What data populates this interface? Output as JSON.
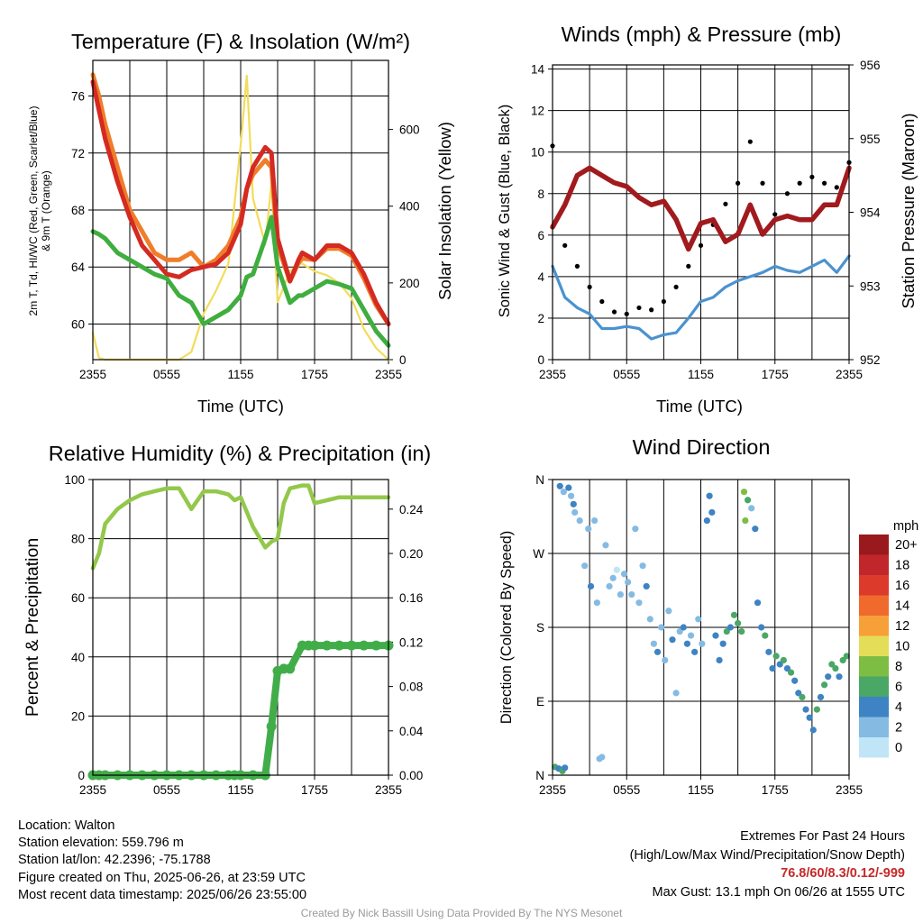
{
  "panels": {
    "temperature": {
      "title": "Temperature (F) & Insolation (W/m²)",
      "left_label_lines": [
        "2m T, Td, HI/WC (Red, Green, Scarlet/Blue)",
        "& 9m T (Orange)"
      ],
      "right_label": "Solar Insolation (Yellow)",
      "xlabel": "Time (UTC)"
    },
    "wind": {
      "title": "Winds (mph) & Pressure (mb)",
      "left_label": "Sonic Wind & Gust (Blue, Black)",
      "right_label": "Station Pressure (Maroon)",
      "xlabel": "Time (UTC)"
    },
    "humidity": {
      "title": "Relative Humidity (%) & Precipitation (in)",
      "left_label": "Percent & Precipitation"
    },
    "direction": {
      "title": "Wind Direction",
      "left_label": "Direction (Colored By Speed)"
    }
  },
  "time_ticks": [
    "2355",
    "0555",
    "1155",
    "1755",
    "2355"
  ],
  "colorbar": {
    "unit": "mph",
    "labels": [
      "20+",
      "18",
      "16",
      "14",
      "12",
      "10",
      "8",
      "6",
      "4",
      "2",
      "0"
    ],
    "colors": [
      "#99191c",
      "#c0262b",
      "#dc3a2b",
      "#ef6a2c",
      "#f7a03a",
      "#e4dd58",
      "#7ebd44",
      "#4aa766",
      "#3e83c3",
      "#85bbe3",
      "#bfe5f7"
    ]
  },
  "footer": {
    "location": "Location: Walton",
    "elevation": "Station elevation: 559.796 m",
    "latlon": "Station lat/lon: 42.2396; -75.1788",
    "created": "Figure created on Thu, 2025-06-26, at 23:59 UTC",
    "recent": "Most recent data timestamp: 2025/06/26 23:55:00",
    "extremes_title": "Extremes For Past 24 Hours",
    "extremes_sub": "(High/Low/Max Wind/Precipitation/Snow Depth)",
    "extremes_values": "76.8/60/8.3/0.12/-999",
    "max_gust": "Max Gust: 13.1 mph On 06/26 at 1555 UTC",
    "credit": "Created By Nick Bassill Using Data Provided By The NYS Mesonet"
  },
  "chart_data": [
    {
      "type": "line",
      "x_hours": [
        0,
        0.5,
        1,
        2,
        3,
        4,
        5,
        6,
        7,
        8,
        9,
        10,
        11,
        12,
        12.5,
        13,
        14,
        14.5,
        15,
        16,
        16.7,
        17,
        18,
        19,
        20,
        21,
        22,
        23,
        24
      ],
      "y_left_ticks": [
        60,
        64,
        68,
        72,
        76
      ],
      "y_left_range": [
        57.5,
        78.5
      ],
      "y_right_ticks": [
        0,
        200,
        400,
        600
      ],
      "y_right_range": [
        0,
        780
      ],
      "series": [
        {
          "name": "2m T",
          "color": "#d42a22",
          "values": [
            77,
            75,
            73,
            70,
            67.5,
            65.5,
            64.5,
            63.5,
            63.3,
            63.8,
            64,
            64.2,
            65,
            67,
            69.5,
            71,
            72.4,
            72,
            66,
            63,
            64.5,
            65,
            64.5,
            65.5,
            65.5,
            65,
            63.5,
            61.5,
            60
          ]
        },
        {
          "name": "9m T",
          "color": "#ef7d2a",
          "values": [
            77.5,
            76,
            74,
            71,
            68,
            66.5,
            65,
            64.5,
            64.5,
            65,
            64,
            64.5,
            65.5,
            67.5,
            69.5,
            70.5,
            71.5,
            71,
            65.5,
            63,
            64.3,
            64.6,
            64.5,
            65.3,
            65.3,
            64.8,
            63.2,
            61.3,
            60
          ]
        },
        {
          "name": "Td",
          "color": "#3fae3f",
          "values": [
            66.5,
            66.3,
            66,
            65,
            64.5,
            64,
            63.5,
            63.2,
            62,
            61.5,
            60,
            60.5,
            61,
            62,
            63.3,
            63.5,
            66,
            67.5,
            64,
            61.5,
            62,
            62,
            62.5,
            63,
            62.8,
            62.5,
            61,
            59.5,
            58.5
          ]
        },
        {
          "name": "Solar Insolation",
          "axis": "right",
          "color": "#f2dc5a",
          "values": [
            70,
            5,
            0,
            0,
            0,
            0,
            0,
            0,
            0,
            20,
            120,
            180,
            250,
            560,
            740,
            420,
            300,
            460,
            150,
            230,
            250,
            250,
            230,
            220,
            200,
            160,
            80,
            30,
            0
          ]
        }
      ]
    },
    {
      "type": "line",
      "x_hours": [
        0,
        1,
        2,
        3,
        4,
        5,
        6,
        7,
        8,
        9,
        10,
        11,
        12,
        13,
        14,
        15,
        16,
        17,
        18,
        19,
        20,
        21,
        22,
        23,
        24
      ],
      "y_left_ticks": [
        0,
        2,
        4,
        6,
        8,
        10,
        12,
        14
      ],
      "y_left_range": [
        0,
        14.2
      ],
      "y_right_ticks": [
        952,
        953,
        954,
        955,
        956
      ],
      "y_right_range": [
        952,
        956
      ],
      "series": [
        {
          "name": "Sonic Wind",
          "color": "#4b92cf",
          "values": [
            4.5,
            3,
            2.5,
            2.2,
            1.5,
            1.5,
            1.6,
            1.5,
            1,
            1.2,
            1.3,
            2,
            2.8,
            3,
            3.5,
            3.8,
            4,
            4.2,
            4.5,
            4.3,
            4.2,
            4.5,
            4.8,
            4.2,
            5
          ]
        },
        {
          "name": "Gust",
          "color": "#000000",
          "values": [
            10.3,
            5.5,
            4.5,
            3.5,
            2.8,
            2.3,
            2.2,
            2.5,
            2.4,
            2.8,
            3.5,
            4.5,
            5.5,
            6.5,
            7.5,
            8.5,
            10.5,
            8.5,
            7,
            8,
            8.5,
            8.8,
            8.5,
            8.3,
            9.5
          ]
        },
        {
          "name": "Station Pressure",
          "axis": "right",
          "color": "#a11a1d",
          "values": [
            953.8,
            954.1,
            954.5,
            954.6,
            954.5,
            954.4,
            954.35,
            954.2,
            954.1,
            954.15,
            953.9,
            953.5,
            953.85,
            953.9,
            953.6,
            953.7,
            954.1,
            953.7,
            953.9,
            953.95,
            953.9,
            953.9,
            954.1,
            954.1,
            954.6
          ]
        }
      ]
    },
    {
      "type": "line",
      "x_hours": [
        0,
        0.5,
        1,
        2,
        3,
        4,
        5,
        6,
        7,
        8,
        9,
        10,
        11,
        11.5,
        12,
        13,
        14,
        14.5,
        15,
        15.5,
        16,
        17,
        17.5,
        18,
        19,
        20,
        21,
        22,
        23,
        24
      ],
      "y_left_ticks": [
        0,
        20,
        40,
        60,
        80,
        100
      ],
      "y_left_range": [
        0,
        100
      ],
      "y_right_ticks": [
        0.0,
        0.04,
        0.08,
        0.12,
        0.16,
        0.2,
        0.24
      ],
      "y_right_range": [
        0,
        0.2667
      ],
      "series": [
        {
          "name": "Relative Humidity",
          "color": "#93c84a",
          "values": [
            70,
            75,
            85,
            90,
            93,
            95,
            96,
            97,
            97,
            90,
            96,
            96,
            95,
            93,
            94,
            84,
            77,
            79,
            80,
            92,
            97,
            98,
            98,
            92,
            93,
            94,
            94,
            94,
            94,
            94
          ]
        },
        {
          "name": "Precipitation",
          "axis": "right",
          "color": "#41ad49",
          "values": [
            0,
            0,
            0,
            0,
            0,
            0,
            0,
            0,
            0,
            0,
            0,
            0,
            0,
            0,
            0,
            0,
            0,
            0.044,
            0.094,
            0.096,
            0.096,
            0.117,
            0.117,
            0.117,
            0.117,
            0.117,
            0.117,
            0.117,
            0.117,
            0.117
          ]
        }
      ]
    },
    {
      "type": "scatter",
      "y_tick_labels": [
        "N",
        "E",
        "S",
        "W",
        "N"
      ],
      "y_range_degrees": [
        0,
        360
      ],
      "color_by": "speed (mph)",
      "points": [
        {
          "hour": 0.2,
          "dir": 10,
          "spd": 5
        },
        {
          "hour": 0.5,
          "dir": 8,
          "spd": 4
        },
        {
          "hour": 0.8,
          "dir": 5,
          "spd": 5
        },
        {
          "hour": 1.0,
          "dir": 9,
          "spd": 3
        },
        {
          "hour": 0.6,
          "dir": 352,
          "spd": 3
        },
        {
          "hour": 0.9,
          "dir": 345,
          "spd": 2
        },
        {
          "hour": 1.3,
          "dir": 350,
          "spd": 4
        },
        {
          "hour": 1.5,
          "dir": 340,
          "spd": 2
        },
        {
          "hour": 1.7,
          "dir": 330,
          "spd": 3
        },
        {
          "hour": 1.8,
          "dir": 320,
          "spd": 1
        },
        {
          "hour": 2.2,
          "dir": 310,
          "spd": 2
        },
        {
          "hour": 2.6,
          "dir": 255,
          "spd": 1
        },
        {
          "hour": 2.9,
          "dir": 300,
          "spd": 2
        },
        {
          "hour": 3.1,
          "dir": 230,
          "spd": 3
        },
        {
          "hour": 3.4,
          "dir": 310,
          "spd": 1
        },
        {
          "hour": 3.6,
          "dir": 210,
          "spd": 2
        },
        {
          "hour": 3.8,
          "dir": 20,
          "spd": 1
        },
        {
          "hour": 4.0,
          "dir": 22,
          "spd": 1
        },
        {
          "hour": 4.3,
          "dir": 280,
          "spd": 1
        },
        {
          "hour": 4.6,
          "dir": 230,
          "spd": 2
        },
        {
          "hour": 4.9,
          "dir": 240,
          "spd": 1
        },
        {
          "hour": 5.2,
          "dir": 250,
          "spd": 0
        },
        {
          "hour": 5.5,
          "dir": 220,
          "spd": 2
        },
        {
          "hour": 5.8,
          "dir": 245,
          "spd": 1
        },
        {
          "hour": 6.1,
          "dir": 235,
          "spd": 2
        },
        {
          "hour": 6.4,
          "dir": 220,
          "spd": 1
        },
        {
          "hour": 6.7,
          "dir": 300,
          "spd": 2
        },
        {
          "hour": 7.0,
          "dir": 210,
          "spd": 1
        },
        {
          "hour": 7.3,
          "dir": 255,
          "spd": 2
        },
        {
          "hour": 7.6,
          "dir": 230,
          "spd": 3
        },
        {
          "hour": 7.9,
          "dir": 190,
          "spd": 2
        },
        {
          "hour": 8.2,
          "dir": 160,
          "spd": 1
        },
        {
          "hour": 8.5,
          "dir": 150,
          "spd": 3
        },
        {
          "hour": 8.8,
          "dir": 180,
          "spd": 2
        },
        {
          "hour": 9.1,
          "dir": 140,
          "spd": 1
        },
        {
          "hour": 9.4,
          "dir": 200,
          "spd": 2
        },
        {
          "hour": 9.7,
          "dir": 165,
          "spd": 3
        },
        {
          "hour": 10.0,
          "dir": 100,
          "spd": 2
        },
        {
          "hour": 10.3,
          "dir": 175,
          "spd": 2
        },
        {
          "hour": 10.6,
          "dir": 180,
          "spd": 4
        },
        {
          "hour": 10.9,
          "dir": 160,
          "spd": 3
        },
        {
          "hour": 11.2,
          "dir": 170,
          "spd": 2
        },
        {
          "hour": 11.5,
          "dir": 150,
          "spd": 3
        },
        {
          "hour": 11.8,
          "dir": 190,
          "spd": 2
        },
        {
          "hour": 12.1,
          "dir": 160,
          "spd": 1
        },
        {
          "hour": 12.5,
          "dir": 310,
          "spd": 3
        },
        {
          "hour": 12.7,
          "dir": 340,
          "spd": 4
        },
        {
          "hour": 12.9,
          "dir": 320,
          "spd": 3
        },
        {
          "hour": 13.2,
          "dir": 170,
          "spd": 4
        },
        {
          "hour": 13.5,
          "dir": 140,
          "spd": 3
        },
        {
          "hour": 13.8,
          "dir": 160,
          "spd": 4
        },
        {
          "hour": 14.1,
          "dir": 175,
          "spd": 5
        },
        {
          "hour": 14.4,
          "dir": 180,
          "spd": 4
        },
        {
          "hour": 14.7,
          "dir": 195,
          "spd": 6
        },
        {
          "hour": 15.0,
          "dir": 185,
          "spd": 5
        },
        {
          "hour": 15.3,
          "dir": 175,
          "spd": 6
        },
        {
          "hour": 15.5,
          "dir": 345,
          "spd": 7
        },
        {
          "hour": 15.6,
          "dir": 310,
          "spd": 7
        },
        {
          "hour": 15.8,
          "dir": 335,
          "spd": 6
        },
        {
          "hour": 16.1,
          "dir": 325,
          "spd": 2
        },
        {
          "hour": 16.4,
          "dir": 300,
          "spd": 3
        },
        {
          "hour": 16.6,
          "dir": 210,
          "spd": 3
        },
        {
          "hour": 16.9,
          "dir": 180,
          "spd": 3
        },
        {
          "hour": 17.2,
          "dir": 170,
          "spd": 5
        },
        {
          "hour": 17.5,
          "dir": 150,
          "spd": 4
        },
        {
          "hour": 17.8,
          "dir": 130,
          "spd": 4
        },
        {
          "hour": 18.1,
          "dir": 145,
          "spd": 5
        },
        {
          "hour": 18.4,
          "dir": 135,
          "spd": 4
        },
        {
          "hour": 18.7,
          "dir": 140,
          "spd": 5
        },
        {
          "hour": 19.0,
          "dir": 130,
          "spd": 4
        },
        {
          "hour": 19.3,
          "dir": 125,
          "spd": 5
        },
        {
          "hour": 19.6,
          "dir": 115,
          "spd": 4
        },
        {
          "hour": 19.9,
          "dir": 100,
          "spd": 4
        },
        {
          "hour": 20.2,
          "dir": 95,
          "spd": 5
        },
        {
          "hour": 20.5,
          "dir": 80,
          "spd": 4
        },
        {
          "hour": 20.8,
          "dir": 70,
          "spd": 4
        },
        {
          "hour": 21.1,
          "dir": 55,
          "spd": 4
        },
        {
          "hour": 21.4,
          "dir": 80,
          "spd": 5
        },
        {
          "hour": 21.7,
          "dir": 95,
          "spd": 4
        },
        {
          "hour": 22.0,
          "dir": 110,
          "spd": 5
        },
        {
          "hour": 22.3,
          "dir": 120,
          "spd": 4
        },
        {
          "hour": 22.6,
          "dir": 135,
          "spd": 6
        },
        {
          "hour": 22.9,
          "dir": 130,
          "spd": 5
        },
        {
          "hour": 23.2,
          "dir": 120,
          "spd": 4
        },
        {
          "hour": 23.5,
          "dir": 140,
          "spd": 5
        },
        {
          "hour": 23.8,
          "dir": 145,
          "spd": 6
        }
      ]
    }
  ]
}
